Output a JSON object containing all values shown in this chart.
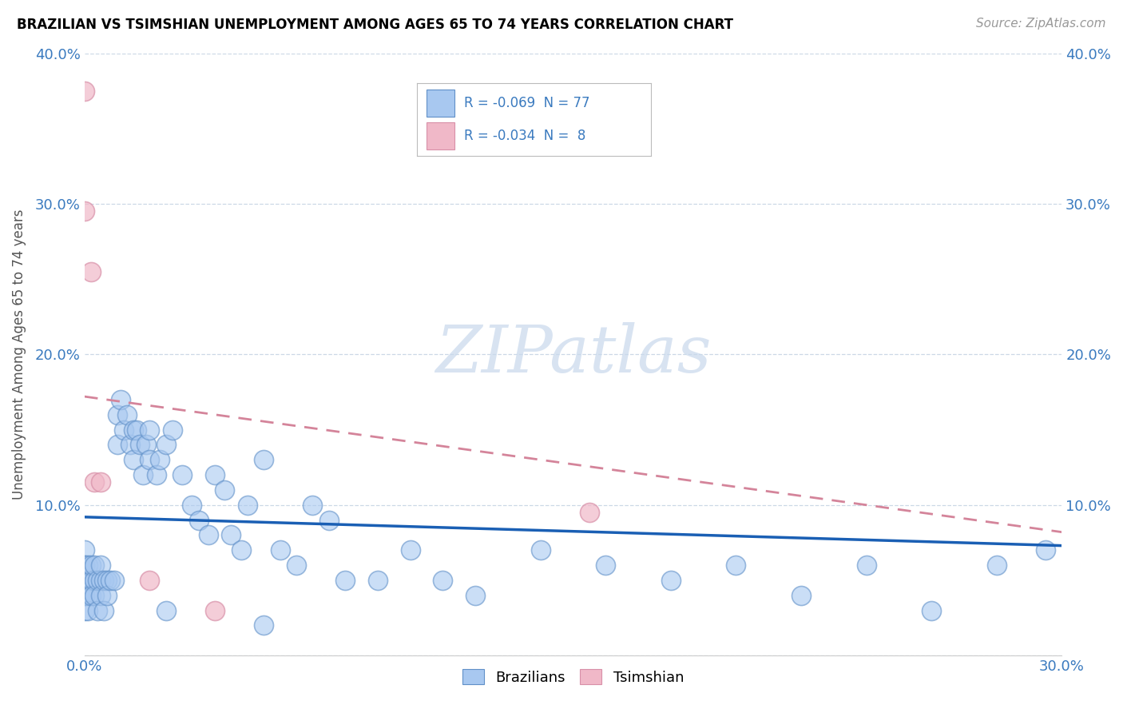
{
  "title": "BRAZILIAN VS TSIMSHIAN UNEMPLOYMENT AMONG AGES 65 TO 74 YEARS CORRELATION CHART",
  "source": "Source: ZipAtlas.com",
  "ylabel_label": "Unemployment Among Ages 65 to 74 years",
  "xlim": [
    0.0,
    0.3
  ],
  "ylim": [
    0.0,
    0.4
  ],
  "ytick_values": [
    0.0,
    0.1,
    0.2,
    0.3,
    0.4
  ],
  "ytick_labels_left": [
    "",
    "10.0%",
    "20.0%",
    "30.0%",
    "40.0%"
  ],
  "ytick_labels_right": [
    "",
    "10.0%",
    "20.0%",
    "30.0%",
    "40.0%"
  ],
  "xtick_values": [
    0.0,
    0.05,
    0.1,
    0.15,
    0.2,
    0.25,
    0.3
  ],
  "xtick_labels": [
    "0.0%",
    "",
    "",
    "",
    "",
    "",
    "30.0%"
  ],
  "watermark_text": "ZIPatlas",
  "legend_r1": "-0.069",
  "legend_n1": "77",
  "legend_r2": "-0.034",
  "legend_n2": " 8",
  "blue_color": "#a8c8f0",
  "pink_color": "#f0b8c8",
  "trend_blue_color": "#1a5fb4",
  "trend_pink_color": "#d4849a",
  "blue_marker_edge": "#6090c8",
  "pink_marker_edge": "#d890a8",
  "label_color": "#3a7abf",
  "watermark_color": "#c8d8ec",
  "b_trend_x0": 0.0,
  "b_trend_y0": 0.092,
  "b_trend_x1": 0.3,
  "b_trend_y1": 0.073,
  "t_trend_x0": 0.0,
  "t_trend_y0": 0.172,
  "t_trend_x1": 0.3,
  "t_trend_y1": 0.082,
  "brazilian_x": [
    0.0,
    0.0,
    0.0,
    0.0,
    0.0,
    0.0,
    0.0,
    0.0,
    0.001,
    0.001,
    0.001,
    0.001,
    0.002,
    0.002,
    0.002,
    0.003,
    0.003,
    0.003,
    0.004,
    0.004,
    0.005,
    0.005,
    0.005,
    0.006,
    0.006,
    0.007,
    0.007,
    0.008,
    0.009,
    0.01,
    0.01,
    0.011,
    0.012,
    0.013,
    0.014,
    0.015,
    0.015,
    0.016,
    0.017,
    0.018,
    0.019,
    0.02,
    0.02,
    0.022,
    0.023,
    0.025,
    0.027,
    0.03,
    0.033,
    0.035,
    0.038,
    0.04,
    0.043,
    0.045,
    0.048,
    0.05,
    0.055,
    0.06,
    0.065,
    0.07,
    0.075,
    0.08,
    0.09,
    0.1,
    0.11,
    0.12,
    0.14,
    0.16,
    0.18,
    0.2,
    0.22,
    0.24,
    0.26,
    0.28,
    0.295,
    0.025,
    0.055
  ],
  "brazilian_y": [
    0.05,
    0.04,
    0.06,
    0.03,
    0.07,
    0.05,
    0.04,
    0.06,
    0.05,
    0.04,
    0.06,
    0.03,
    0.05,
    0.04,
    0.06,
    0.05,
    0.04,
    0.06,
    0.05,
    0.03,
    0.05,
    0.04,
    0.06,
    0.05,
    0.03,
    0.05,
    0.04,
    0.05,
    0.05,
    0.16,
    0.14,
    0.17,
    0.15,
    0.16,
    0.14,
    0.15,
    0.13,
    0.15,
    0.14,
    0.12,
    0.14,
    0.13,
    0.15,
    0.12,
    0.13,
    0.14,
    0.15,
    0.12,
    0.1,
    0.09,
    0.08,
    0.12,
    0.11,
    0.08,
    0.07,
    0.1,
    0.13,
    0.07,
    0.06,
    0.1,
    0.09,
    0.05,
    0.05,
    0.07,
    0.05,
    0.04,
    0.07,
    0.06,
    0.05,
    0.06,
    0.04,
    0.06,
    0.03,
    0.06,
    0.07,
    0.03,
    0.02
  ],
  "tsimshian_x": [
    0.0,
    0.0,
    0.002,
    0.003,
    0.005,
    0.02,
    0.04,
    0.155
  ],
  "tsimshian_y": [
    0.375,
    0.295,
    0.255,
    0.115,
    0.115,
    0.05,
    0.03,
    0.095
  ]
}
